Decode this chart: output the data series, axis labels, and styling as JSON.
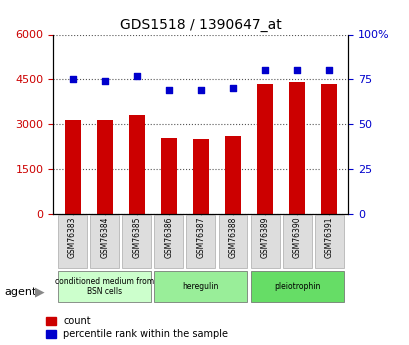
{
  "title": "GDS1518 / 1390647_at",
  "categories": [
    "GSM76383",
    "GSM76384",
    "GSM76385",
    "GSM76386",
    "GSM76387",
    "GSM76388",
    "GSM76389",
    "GSM76390",
    "GSM76391"
  ],
  "bar_values": [
    3150,
    3150,
    3300,
    2550,
    2500,
    2600,
    4350,
    4400,
    4350
  ],
  "scatter_values": [
    75,
    74,
    77,
    69,
    69,
    70,
    80,
    80,
    80
  ],
  "bar_color": "#cc0000",
  "scatter_color": "#0000cc",
  "left_ylim": [
    0,
    6000
  ],
  "right_ylim": [
    0,
    100
  ],
  "left_yticks": [
    0,
    1500,
    3000,
    4500,
    6000
  ],
  "right_yticks": [
    0,
    25,
    50,
    75,
    100
  ],
  "right_yticklabels": [
    "0",
    "25",
    "50",
    "75",
    "100%"
  ],
  "groups": [
    {
      "label": "conditioned medium from\nBSN cells",
      "start": 0,
      "end": 3,
      "color": "#ccffcc"
    },
    {
      "label": "heregulin",
      "start": 3,
      "end": 6,
      "color": "#99ee99"
    },
    {
      "label": "pleiotrophin",
      "start": 6,
      "end": 9,
      "color": "#66dd66"
    }
  ],
  "agent_label": "agent",
  "legend_count_label": "count",
  "legend_pct_label": "percentile rank within the sample",
  "bg_color": "#ffffff",
  "plot_bg_color": "#ffffff",
  "tick_label_color_left": "#cc0000",
  "tick_label_color_right": "#0000cc",
  "dotted_line_color": "#555555",
  "bar_width": 0.5
}
